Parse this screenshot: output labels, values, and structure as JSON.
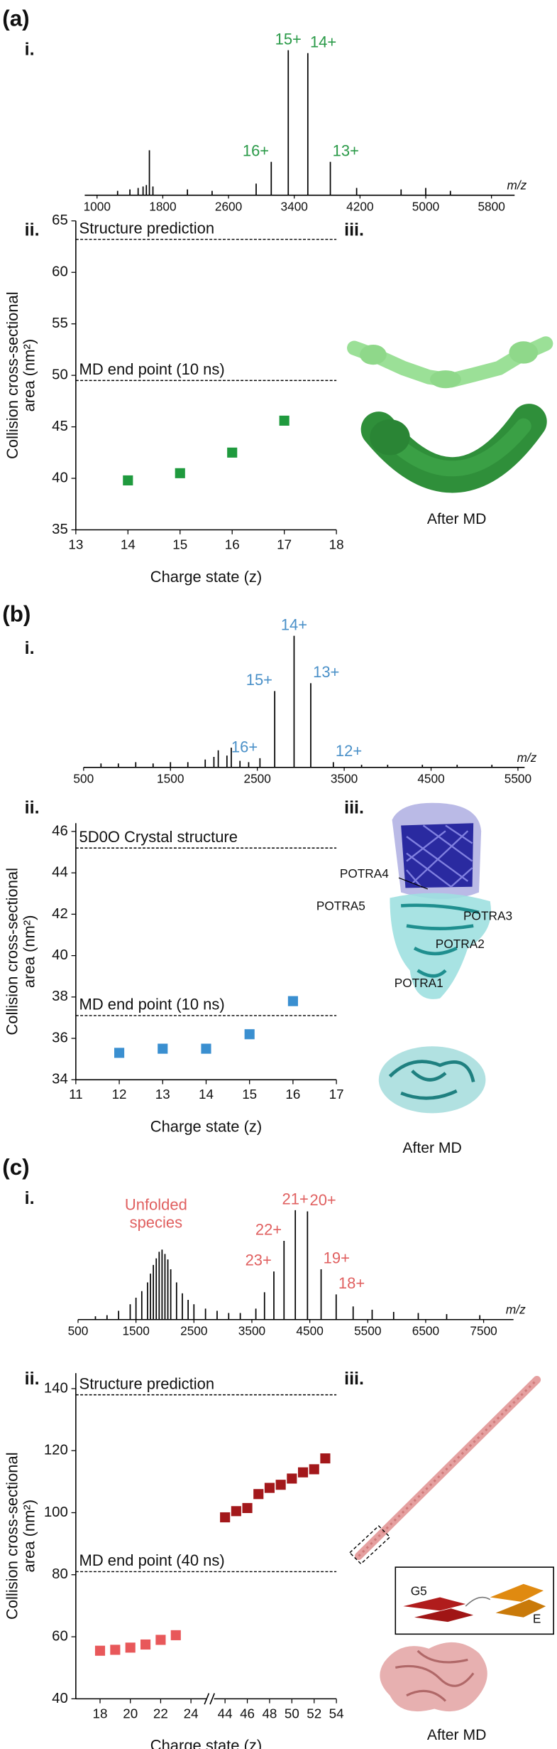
{
  "panels": [
    {
      "label": "(a)",
      "parts": [
        "i.",
        "ii.",
        "iii."
      ],
      "captions": [
        "After MD"
      ]
    },
    {
      "label": "(b)",
      "parts": [
        "i.",
        "ii.",
        "iii."
      ],
      "captions": [
        "POTRA4",
        "POTRA5",
        "POTRA3",
        "POTRA2",
        "POTRA1",
        "After MD"
      ]
    },
    {
      "label": "(c)",
      "parts": [
        "i.",
        "ii.",
        "iii."
      ],
      "captions": [
        "G5",
        "E",
        "After MD"
      ]
    }
  ],
  "chart_data": [
    {
      "type": "spectrum",
      "xlabel": "m/z",
      "xlim": [
        850,
        6000
      ],
      "xticks": [
        1000,
        1800,
        2600,
        3400,
        4200,
        5000,
        5800
      ],
      "ylim": [
        0,
        100
      ],
      "color": "#000000",
      "label_color": "#2a9a48",
      "x": [
        1250,
        1400,
        1500,
        1560,
        1600,
        1637,
        1680,
        2100,
        2400,
        2936,
        3120,
        3327,
        3565,
        3839,
        4159,
        4700,
        5000,
        5300
      ],
      "values": [
        3,
        4,
        5,
        6,
        7,
        31,
        6,
        4,
        3,
        8,
        23,
        100,
        98,
        23,
        5,
        4,
        5,
        3
      ],
      "peak_labels": [
        null,
        null,
        null,
        null,
        null,
        null,
        null,
        null,
        null,
        null,
        "16+",
        "15+",
        "14+",
        "13+",
        null,
        null,
        null,
        null
      ]
    },
    {
      "type": "scatter",
      "xlabel": "Charge state (z)",
      "ylabel": [
        "Collision cross-sectional",
        "area (nm²)"
      ],
      "xlim": [
        13,
        18
      ],
      "xticks": [
        13,
        14,
        15,
        16,
        17,
        18
      ],
      "ylim": [
        35,
        65
      ],
      "yticks": [
        35,
        40,
        45,
        50,
        55,
        60,
        65
      ],
      "color": "#1f9a3e",
      "x": [
        14,
        15,
        16,
        17
      ],
      "values": [
        39.8,
        40.5,
        42.5,
        45.6
      ],
      "reference_lines": [
        {
          "label": "Structure prediction",
          "value": 63.2
        },
        {
          "label": "MD end point (10 ns)",
          "value": 49.5
        }
      ]
    },
    {
      "type": "spectrum",
      "xlabel": "m/z",
      "xlim": [
        500,
        5500
      ],
      "xticks": [
        500,
        1500,
        2500,
        3500,
        4500,
        5500
      ],
      "ylim": [
        0,
        100
      ],
      "color": "#000000",
      "label_color": "#4a90c8",
      "x": [
        700,
        900,
        1100,
        1300,
        1500,
        1700,
        1900,
        2000,
        2050,
        2150,
        2200,
        2300,
        2400,
        2530,
        2700,
        2923,
        3115,
        3375,
        3700,
        4000,
        4400,
        4800,
        5200
      ],
      "values": [
        3,
        3,
        4,
        3,
        4,
        4,
        6,
        8,
        13,
        9,
        15,
        5,
        4,
        7,
        58,
        100,
        64,
        4,
        2,
        2,
        2,
        2,
        2
      ],
      "peak_labels": [
        null,
        null,
        null,
        null,
        null,
        null,
        null,
        null,
        null,
        null,
        null,
        null,
        null,
        "16+",
        "15+",
        "14+",
        "13+",
        "12+",
        null,
        null,
        null,
        null,
        null
      ]
    },
    {
      "type": "scatter",
      "xlabel": "Charge state (z)",
      "ylabel": [
        "Collision cross-sectional",
        "area (nm²)"
      ],
      "xlim": [
        11,
        17
      ],
      "xticks": [
        11,
        12,
        13,
        14,
        15,
        16,
        17
      ],
      "ylim": [
        34,
        46.4
      ],
      "yticks": [
        34,
        36,
        38,
        40,
        42,
        44,
        46
      ],
      "color": "#3a8fd0",
      "x": [
        12,
        13,
        14,
        15,
        16
      ],
      "values": [
        35.3,
        35.5,
        35.5,
        36.2,
        37.8
      ],
      "reference_lines": [
        {
          "label": "5D0O Crystal structure",
          "value": 45.2
        },
        {
          "label": "MD end point (10 ns)",
          "value": 37.1
        }
      ]
    },
    {
      "type": "spectrum",
      "xlabel": "m/z",
      "xlim": [
        500,
        7900
      ],
      "xticks": [
        500,
        1500,
        2500,
        3500,
        4500,
        5500,
        6500,
        7500
      ],
      "ylim": [
        0,
        100
      ],
      "color": "#000000",
      "label_color": "#e06060",
      "annotation": [
        "Unfolded",
        "species"
      ],
      "x": [
        800,
        1000,
        1200,
        1400,
        1500,
        1600,
        1700,
        1750,
        1800,
        1850,
        1900,
        1950,
        2000,
        2050,
        2100,
        2200,
        2300,
        2400,
        2500,
        2700,
        2900,
        3100,
        3300,
        3569,
        3718,
        3880,
        4055,
        4250,
        4460,
        4695,
        4955,
        5248,
        5576,
        5947,
        6372,
        6862,
        7434
      ],
      "values": [
        3,
        4,
        8,
        14,
        20,
        26,
        34,
        42,
        50,
        56,
        62,
        64,
        60,
        55,
        46,
        34,
        24,
        18,
        14,
        10,
        8,
        6,
        6,
        10,
        25,
        44,
        72,
        100,
        99,
        46,
        23,
        12,
        9,
        7,
        6,
        5,
        4
      ],
      "peak_labels": [
        null,
        null,
        null,
        null,
        null,
        null,
        null,
        null,
        null,
        null,
        null,
        null,
        null,
        null,
        null,
        null,
        null,
        null,
        null,
        null,
        null,
        null,
        null,
        null,
        null,
        "23+",
        "22+",
        "21+",
        "20+",
        "19+",
        "18+",
        null,
        null,
        null,
        null,
        null,
        null
      ]
    },
    {
      "type": "scatter",
      "xlabel": "Charge state (z)",
      "ylabel": [
        "Collision cross-sectional",
        "area (nm²)"
      ],
      "ylim": [
        40,
        145
      ],
      "yticks": [
        40,
        60,
        80,
        100,
        120,
        140
      ],
      "x_segments": [
        {
          "xlim": [
            16.4,
            25
          ],
          "xticks": [
            18,
            20,
            22,
            24
          ]
        },
        {
          "xlim": [
            43,
            54
          ],
          "xticks": [
            44,
            46,
            48,
            50,
            52,
            54
          ]
        }
      ],
      "series": [
        {
          "color": "#e8585a",
          "x": [
            18,
            19,
            20,
            21,
            22,
            23
          ],
          "values": [
            55.5,
            55.8,
            56.5,
            57.5,
            59,
            60.5
          ]
        },
        {
          "color": "#a3181b",
          "x": [
            44,
            45,
            46,
            47,
            48,
            49,
            50,
            51,
            52,
            53
          ],
          "values": [
            98.5,
            100.5,
            101.5,
            106,
            108,
            109,
            111,
            113,
            114,
            117.5
          ]
        }
      ],
      "reference_lines": [
        {
          "label": "Structure prediction",
          "value": 138
        },
        {
          "label": "MD end point (40 ns)",
          "value": 81
        }
      ]
    }
  ]
}
